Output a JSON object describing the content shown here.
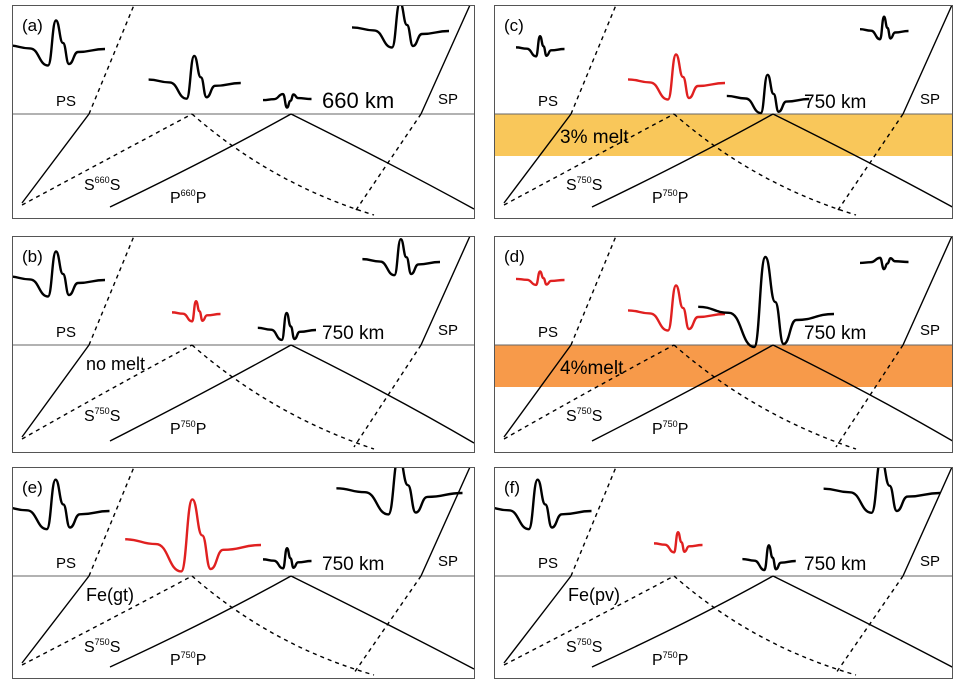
{
  "colors": {
    "black": "#000000",
    "red": "#e02020",
    "melt_3": "#f9c75a",
    "melt_4": "#f79a4a",
    "frame": "#555555"
  },
  "panels": [
    {
      "id": "a",
      "tag": "(a)",
      "depth": "660 km",
      "ps": "PS",
      "sp": "SP",
      "s_phase": {
        "base": "S",
        "sup": "660",
        "tail": "S"
      },
      "p_phase": {
        "base": "P",
        "sup": "660",
        "tail": "P"
      },
      "layer": null,
      "note": null,
      "pulses": {
        "ps": {
          "amp": 1.0,
          "color": "black"
        },
        "sds": {
          "amp": 0.95,
          "color": "black"
        },
        "pdp": {
          "amp": 0.3,
          "color": "black",
          "inverted": true
        },
        "sp": {
          "amp": 1.0,
          "color": "black"
        }
      }
    },
    {
      "id": "c",
      "tag": "(c)",
      "depth": "750 km",
      "ps": "PS",
      "sp": "SP",
      "s_phase": {
        "base": "S",
        "sup": "750",
        "tail": "S"
      },
      "p_phase": {
        "base": "P",
        "sup": "750",
        "tail": "P"
      },
      "layer": {
        "label": "3% melt",
        "color": "melt_3"
      },
      "note": null,
      "pulses": {
        "ps": {
          "amp": 0.45,
          "color": "black"
        },
        "sds": {
          "amp": 1.0,
          "color": "red"
        },
        "pdp": {
          "amp": 0.85,
          "color": "black"
        },
        "sp": {
          "amp": 0.5,
          "color": "black"
        }
      }
    },
    {
      "id": "b",
      "tag": "(b)",
      "depth": "750 km",
      "ps": "PS",
      "sp": "SP",
      "s_phase": {
        "base": "S",
        "sup": "750",
        "tail": "S"
      },
      "p_phase": {
        "base": "P",
        "sup": "750",
        "tail": "P"
      },
      "layer": null,
      "note": "no melt",
      "pulses": {
        "ps": {
          "amp": 1.0,
          "color": "black"
        },
        "sds": {
          "amp": 0.45,
          "color": "red"
        },
        "pdp": {
          "amp": 0.6,
          "color": "black"
        },
        "sp": {
          "amp": 0.8,
          "color": "black"
        }
      }
    },
    {
      "id": "d",
      "tag": "(d)",
      "depth": "750 km",
      "ps": "PS",
      "sp": "SP",
      "s_phase": {
        "base": "S",
        "sup": "750",
        "tail": "S"
      },
      "p_phase": {
        "base": "P",
        "sup": "750",
        "tail": "P"
      },
      "layer": {
        "label": "4%melt",
        "color": "melt_4"
      },
      "note": null,
      "pulses": {
        "ps": {
          "amp": 0.3,
          "color": "red"
        },
        "sds": {
          "amp": 1.0,
          "color": "red"
        },
        "pdp": {
          "amp": 2.0,
          "color": "black"
        },
        "sp": {
          "amp": 0.25,
          "color": "black",
          "inverted": true
        }
      }
    },
    {
      "id": "e",
      "tag": "(e)",
      "depth": "750 km",
      "ps": "PS",
      "sp": "SP",
      "s_phase": {
        "base": "S",
        "sup": "750",
        "tail": "S"
      },
      "p_phase": {
        "base": "P",
        "sup": "750",
        "tail": "P"
      },
      "layer": null,
      "note": "Fe(gt)",
      "pulses": {
        "ps": {
          "amp": 1.1,
          "color": "black"
        },
        "sds": {
          "amp": 1.6,
          "color": "red"
        },
        "pdp": {
          "amp": 0.45,
          "color": "black"
        },
        "sp": {
          "amp": 1.3,
          "color": "black"
        }
      }
    },
    {
      "id": "f",
      "tag": "(f)",
      "depth": "750 km",
      "ps": "PS",
      "sp": "SP",
      "s_phase": {
        "base": "S",
        "sup": "750",
        "tail": "S"
      },
      "p_phase": {
        "base": "P",
        "sup": "750",
        "tail": "P"
      },
      "layer": null,
      "note": "Fe(pv)",
      "pulses": {
        "ps": {
          "amp": 1.1,
          "color": "black"
        },
        "sds": {
          "amp": 0.45,
          "color": "red"
        },
        "pdp": {
          "amp": 0.55,
          "color": "black"
        },
        "sp": {
          "amp": 1.2,
          "color": "black"
        }
      }
    }
  ]
}
